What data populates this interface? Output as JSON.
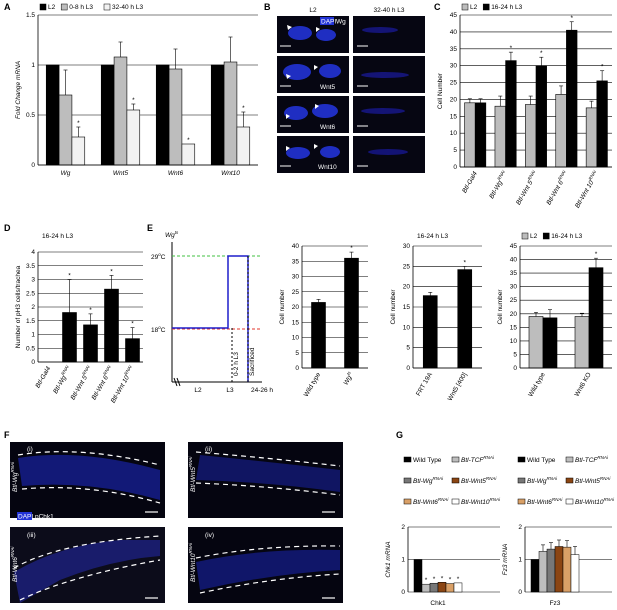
{
  "panel_letters": [
    "A",
    "B",
    "C",
    "D",
    "E",
    "F",
    "G"
  ],
  "colors": {
    "black": "#000000",
    "grey": "#bdbdbd",
    "white": "#f2f2f2",
    "blue": "#1f1fcc",
    "red": "#e3362b",
    "green": "#40c040",
    "brown1": "#777777",
    "brown2": "#8b4513",
    "tan": "#d9a067",
    "micro_bg": "#050510",
    "tissue_blue": "#2233d6"
  },
  "B": {
    "col_left": "L2",
    "col_right": "32-40 h L3",
    "rows": [
      "Wg",
      "Wnt5",
      "Wnt6",
      "Wnt10"
    ],
    "dapi": "DAPI"
  },
  "E": {
    "title": "Wg",
    "title_sup": "ts",
    "temp_hi": "29",
    "temp_lo": "18",
    "deg": "o",
    "deg_unit": "C",
    "x_labels": [
      "L2",
      "L3",
      "24-26 h"
    ],
    "shift_label": "0-2 h L3",
    "sac_label": "Sacrificed"
  },
  "F": {
    "legend_dapi": "DAPI",
    "legend_pchk1": "pChk1",
    "panels": [
      {
        "id": "(i)",
        "label": "Btl-Wg",
        "sup": "RNAi"
      },
      {
        "id": "(ii)",
        "label": "Btl-Wnt5",
        "sup": "RNAi"
      },
      {
        "id": "(iii)",
        "label": "Btl-Wnt6",
        "sup": "RNAi"
      },
      {
        "id": "(iv)",
        "label": "Btl-Wnt10",
        "sup": "RNAi"
      }
    ]
  },
  "chart_data": [
    {
      "panel": "A",
      "type": "bar",
      "ylabel": "Fold Change mRNA",
      "ylim": [
        0,
        1.5
      ],
      "yticks": [
        "0",
        "0.5",
        "1",
        "1.5"
      ],
      "categories": [
        "Wg",
        "Wnt5",
        "Wnt6",
        "Wnt10"
      ],
      "series": [
        {
          "name": "L2",
          "color": "#000000",
          "values": [
            1.0,
            1.0,
            1.0,
            1.0
          ],
          "err": [
            0,
            0,
            0,
            0
          ]
        },
        {
          "name": "0-8 h L3",
          "color": "#bdbdbd",
          "values": [
            0.7,
            1.08,
            0.96,
            1.03
          ],
          "err": [
            0.25,
            0.15,
            0.2,
            0.25
          ]
        },
        {
          "name": "32-40 h L3",
          "color": "#f2f2f2",
          "values": [
            0.28,
            0.55,
            0.21,
            0.38
          ],
          "err": [
            0.1,
            0.06,
            0,
            0.15
          ]
        }
      ],
      "significant": [
        [
          0,
          2
        ],
        [
          1,
          2
        ],
        [
          2,
          2
        ],
        [
          3,
          2
        ]
      ]
    },
    {
      "panel": "C",
      "type": "bar",
      "ylabel": "Cell Number",
      "ylim": [
        0,
        45
      ],
      "yticks": [
        "0",
        "5",
        "10",
        "15",
        "20",
        "25",
        "30",
        "35",
        "40",
        "45"
      ],
      "categories": [
        "Btl-Gal4",
        "Btl-Wg",
        "Btl-Wnt 5",
        "Btl-Wnt 6",
        "Btl-Wnt 10"
      ],
      "category_sup": [
        "",
        "RNAi",
        "RNAi",
        "RNAi",
        "RNAi"
      ],
      "series": [
        {
          "name": "L2",
          "color": "#bdbdbd",
          "values": [
            19,
            18,
            18.5,
            21.5,
            17.5
          ],
          "err": [
            1.2,
            3,
            2.5,
            2.5,
            2
          ]
        },
        {
          "name": "16-24 h L3",
          "color": "#000000",
          "values": [
            19,
            31.5,
            30,
            40.5,
            25.5
          ],
          "err": [
            1.2,
            2.5,
            2.5,
            2.5,
            3
          ]
        }
      ],
      "significant": [
        [
          1,
          1
        ],
        [
          2,
          1
        ],
        [
          3,
          1
        ],
        [
          4,
          1
        ]
      ]
    },
    {
      "panel": "D",
      "type": "bar",
      "title": "16-24 h L3",
      "ylabel": "Number of pH3 cells/trachea",
      "ylim": [
        0,
        4
      ],
      "yticks": [
        "0",
        "0.5",
        "1",
        "1.5",
        "2",
        "2.5",
        "3",
        "3.5",
        "4"
      ],
      "categories": [
        "Btl-Gal4",
        "Btl-Wg",
        "Btl-Wnt 5",
        "Btl-Wnt 6",
        "Btl-Wnt 10"
      ],
      "category_sup": [
        "",
        "RNAi",
        "RNAi",
        "RNAi",
        "RNAi"
      ],
      "series": [
        {
          "color": "#000000",
          "values": [
            0,
            1.8,
            1.35,
            2.65,
            0.85
          ],
          "err": [
            0,
            1.2,
            0.4,
            0.5,
            0.4
          ]
        }
      ],
      "significant": [
        [
          1,
          0
        ],
        [
          2,
          0
        ],
        [
          3,
          0
        ],
        [
          4,
          0
        ]
      ]
    },
    {
      "panel": "E1",
      "type": "bar",
      "ylabel": "Cell number",
      "ylim": [
        0,
        40
      ],
      "yticks": [
        "0",
        "5",
        "10",
        "15",
        "20",
        "25",
        "30",
        "35",
        "40"
      ],
      "categories": [
        "Wild type",
        "Wg"
      ],
      "category_sup": [
        "",
        "ts"
      ],
      "category_italic": [
        false,
        true
      ],
      "series": [
        {
          "color": "#000000",
          "values": [
            21.5,
            36
          ],
          "err": [
            1,
            2
          ]
        }
      ],
      "significant": [
        [
          1,
          0
        ]
      ]
    },
    {
      "panel": "E2",
      "type": "bar",
      "title": "16-24 h L3",
      "ylabel": "Cell number",
      "ylim": [
        0,
        30
      ],
      "yticks": [
        "0",
        "5",
        "10",
        "15",
        "20",
        "25",
        "30"
      ],
      "categories": [
        "FRT 19A",
        "Wnt5 [400]"
      ],
      "category_sup": [
        "",
        ""
      ],
      "series": [
        {
          "color": "#000000",
          "values": [
            17.8,
            24.2
          ],
          "err": [
            0.8,
            0.8
          ]
        }
      ],
      "significant": [
        [
          1,
          0
        ]
      ]
    },
    {
      "panel": "E3",
      "type": "bar",
      "ylabel": "Cell number",
      "ylim": [
        0,
        45
      ],
      "yticks": [
        "0",
        "5",
        "10",
        "15",
        "20",
        "25",
        "30",
        "35",
        "40",
        "45"
      ],
      "categories": [
        "Wild type",
        "Wnt6 KO"
      ],
      "category_sup": [
        "",
        ""
      ],
      "series": [
        {
          "name": "L2",
          "color": "#bdbdbd",
          "values": [
            19,
            19
          ],
          "err": [
            1.5,
            1.2
          ]
        },
        {
          "name": "16-24 h L3",
          "color": "#000000",
          "values": [
            18.5,
            37
          ],
          "err": [
            3,
            3.5
          ]
        }
      ],
      "significant": [
        [
          1,
          1
        ]
      ]
    },
    {
      "panel": "G1",
      "type": "bar",
      "ylabel": "Chk1 mRNA",
      "ylim": [
        0,
        2
      ],
      "yticks": [
        "0",
        "1",
        "2"
      ],
      "xlabel": "Chk1",
      "series": [
        {
          "name": "Wild Type",
          "color": "#000000",
          "value": 1.0
        },
        {
          "name": "Btl-TCF",
          "sup": "RNAi",
          "color": "#bdbdbd",
          "value": 0.24
        },
        {
          "name": "Btl-Wg",
          "sup": "RNAi",
          "color": "#777777",
          "value": 0.27
        },
        {
          "name": "Btl-Wnt5",
          "sup": "RNAi",
          "color": "#8b4513",
          "value": 0.3
        },
        {
          "name": "Btl-Wnt6",
          "sup": "RNAi",
          "color": "#d9a067",
          "value": 0.26
        },
        {
          "name": "Btl-Wnt10",
          "sup": "RNAi",
          "color": "#ffffff",
          "value": 0.28
        }
      ],
      "significant": [
        1,
        2,
        3,
        4,
        5
      ]
    },
    {
      "panel": "G2",
      "type": "bar",
      "ylabel": "Fz3 mRNA",
      "ylim": [
        0,
        2
      ],
      "yticks": [
        "0",
        "1",
        "2"
      ],
      "xlabel": "Fz3",
      "series": [
        {
          "name": "Wild Type",
          "color": "#000000",
          "value": 1.0,
          "err": 0
        },
        {
          "name": "Btl-TCF",
          "sup": "RNAi",
          "color": "#bdbdbd",
          "value": 1.25,
          "err": 0.2
        },
        {
          "name": "Btl-Wg",
          "sup": "RNAi",
          "color": "#777777",
          "value": 1.32,
          "err": 0.2
        },
        {
          "name": "Btl-Wnt5",
          "sup": "RNAi",
          "color": "#8b4513",
          "value": 1.4,
          "err": 0.2
        },
        {
          "name": "Btl-Wnt6",
          "sup": "RNAi",
          "color": "#d9a067",
          "value": 1.38,
          "err": 0.2
        },
        {
          "name": "Btl-Wnt10",
          "sup": "RNAi",
          "color": "#ffffff",
          "value": 1.15,
          "err": 0.25
        }
      ],
      "significant": []
    }
  ]
}
